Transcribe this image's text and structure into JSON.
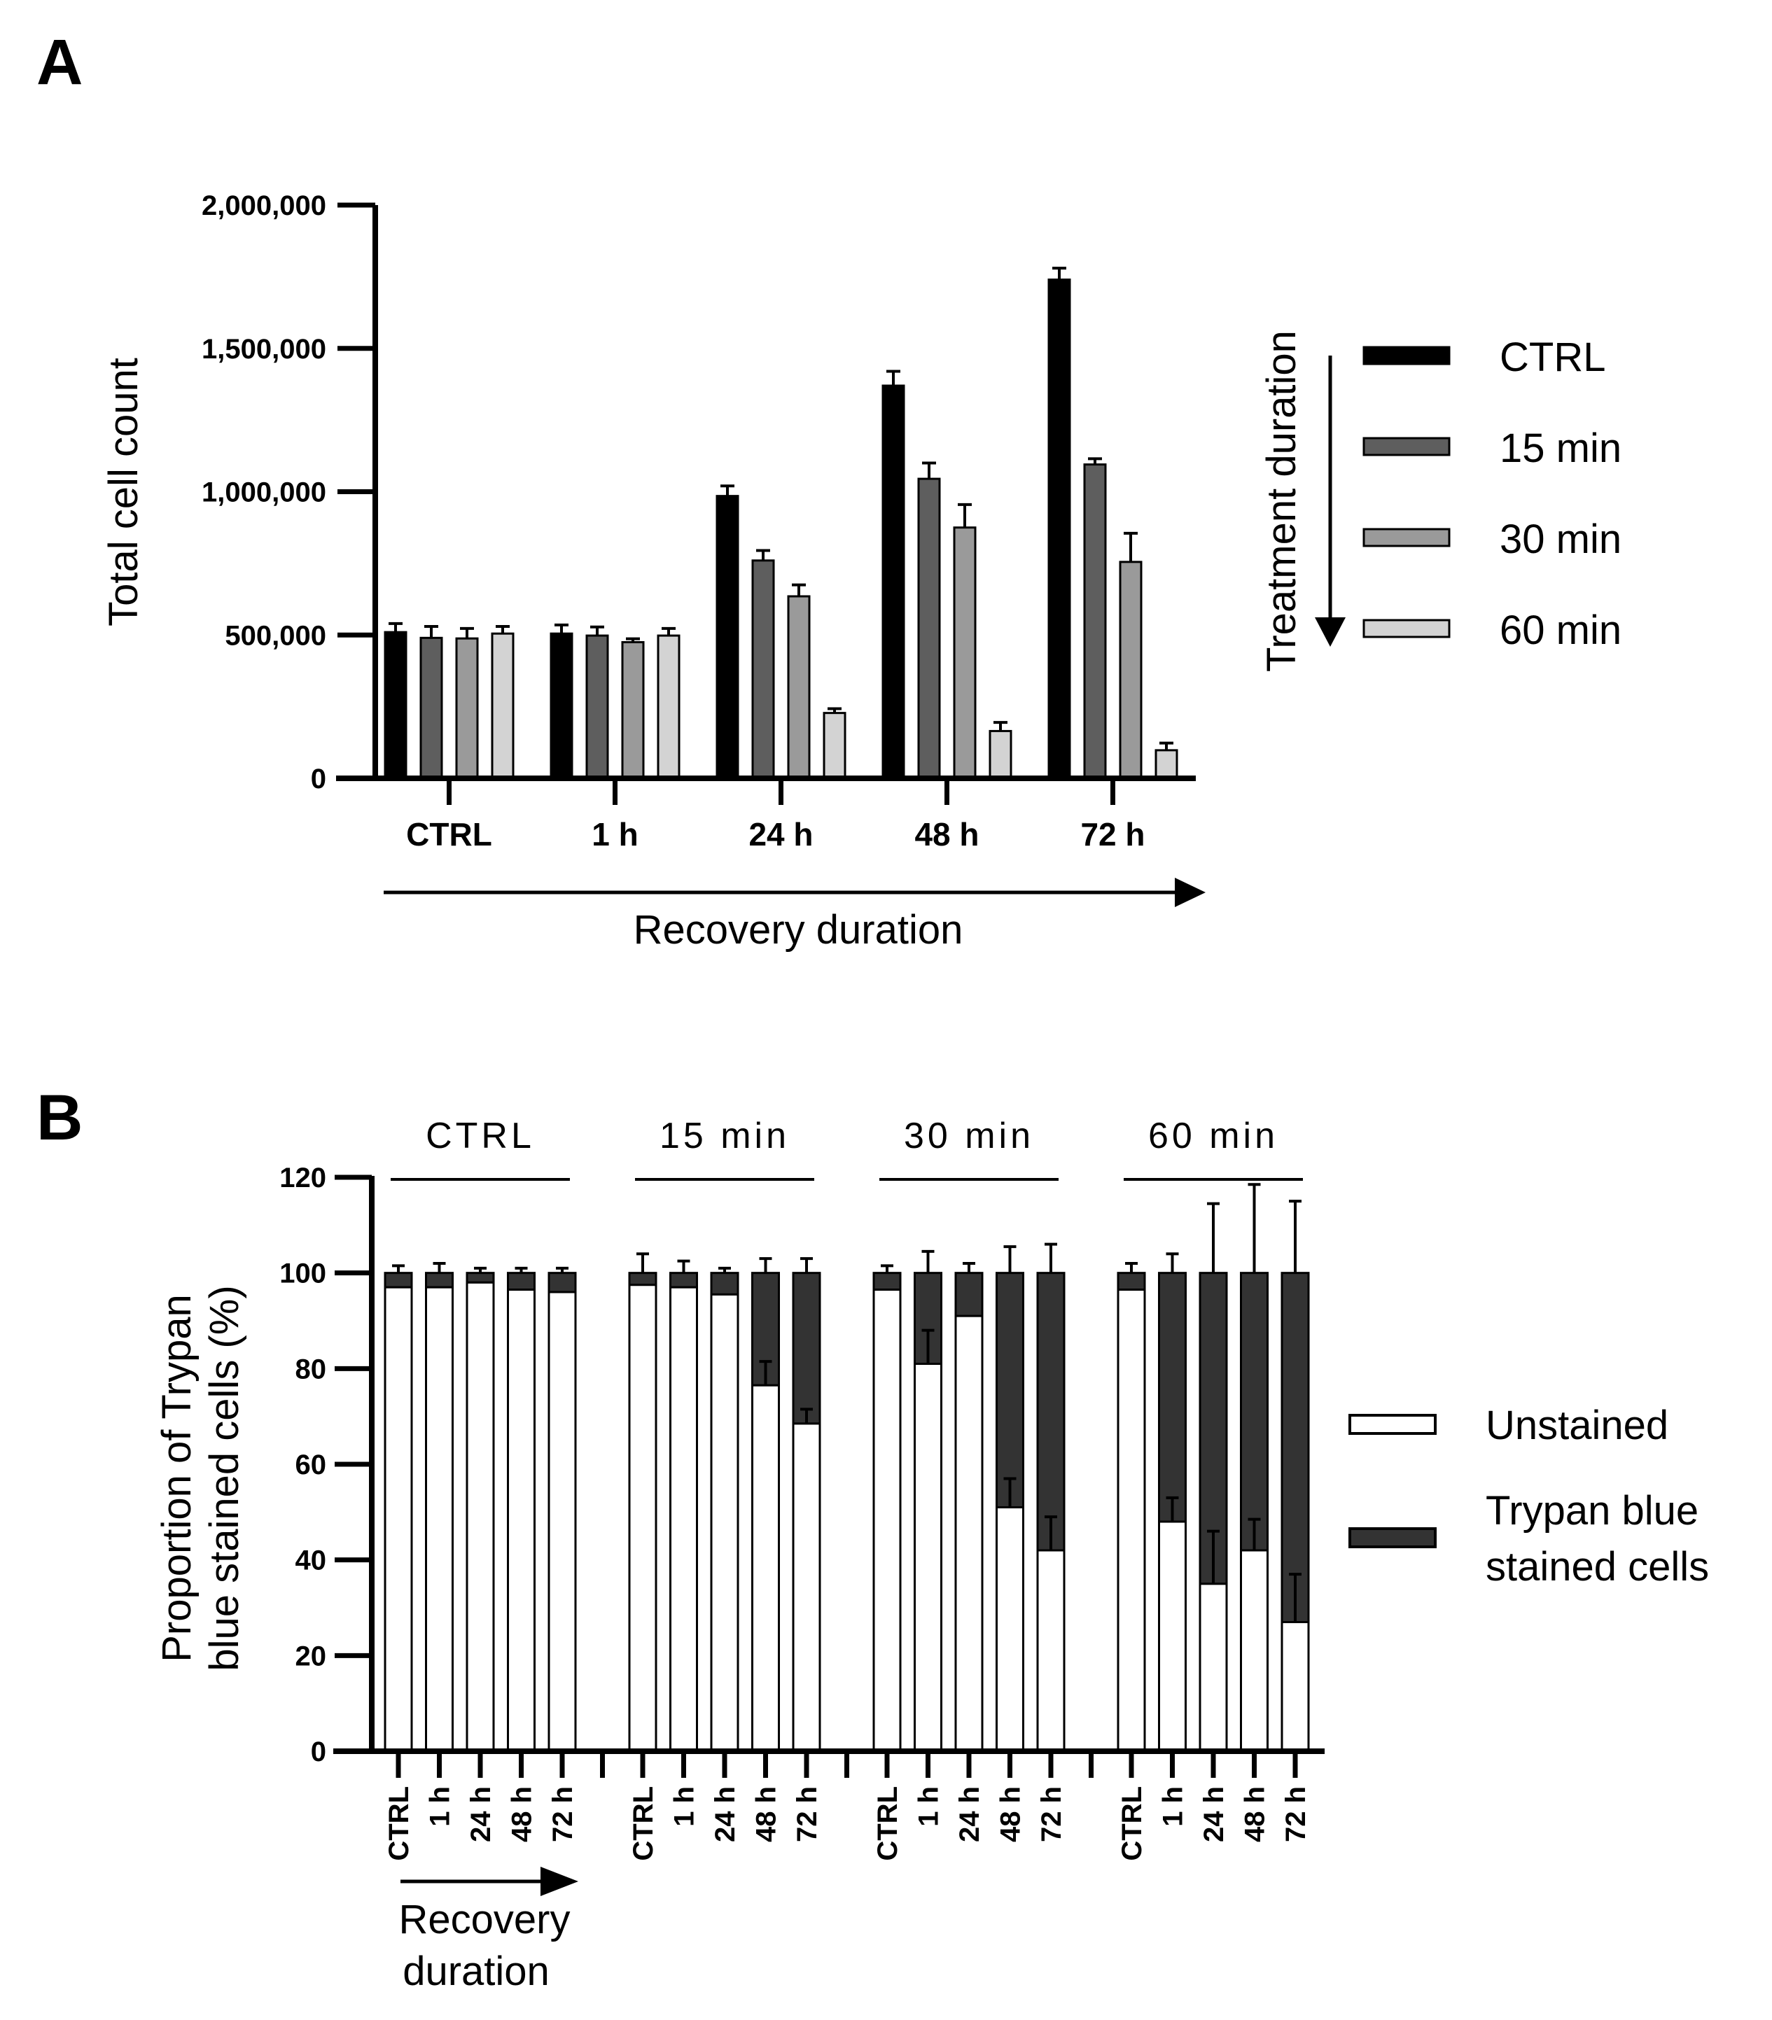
{
  "chart_data": [
    {
      "panel": "A",
      "type": "bar",
      "ylabel": "Total cell count",
      "xlabel": "Recovery duration",
      "legend_title": "Treatment duration",
      "ylim": [
        0,
        2000000
      ],
      "yticks": [
        0,
        500000,
        1000000,
        1500000,
        2000000
      ],
      "ytick_labels": [
        "0",
        "500,000",
        "1,000,000",
        "1,500,000",
        "2,000,000"
      ],
      "categories": [
        "CTRL",
        "1 h",
        "24 h",
        "48 h",
        "72 h"
      ],
      "series": [
        {
          "name": "CTRL",
          "color": "#000000",
          "values": [
            510000,
            505000,
            985000,
            1370000,
            1740000
          ],
          "errors": [
            30000,
            30000,
            35000,
            50000,
            40000
          ]
        },
        {
          "name": "15 min",
          "color": "#5e5e5e",
          "values": [
            490000,
            498000,
            760000,
            1045000,
            1095000
          ],
          "errors": [
            40000,
            30000,
            35000,
            55000,
            20000
          ]
        },
        {
          "name": "30 min",
          "color": "#9a9a9a",
          "values": [
            488000,
            475000,
            635000,
            875000,
            755000
          ],
          "errors": [
            35000,
            12000,
            40000,
            80000,
            100000
          ]
        },
        {
          "name": "60 min",
          "color": "#d3d3d3",
          "values": [
            505000,
            498000,
            228000,
            165000,
            98000
          ],
          "errors": [
            25000,
            25000,
            15000,
            30000,
            25000
          ]
        }
      ]
    },
    {
      "panel": "B",
      "type": "bar",
      "stacked": true,
      "ylabel": "Proportion of Trypan blue stained cells (%)",
      "ylabel_lines": [
        "Proportion of Trypan",
        "blue stained cells (%)"
      ],
      "xlabel_lines": [
        "Recovery",
        "duration"
      ],
      "ylim": [
        0,
        120
      ],
      "yticks": [
        0,
        20,
        40,
        60,
        80,
        100,
        120
      ],
      "groups": [
        "CTRL",
        "15 min",
        "30 min",
        "60 min"
      ],
      "categories": [
        "CTRL",
        "1 h",
        "24 h",
        "48 h",
        "72 h"
      ],
      "series": [
        {
          "name": "Unstained",
          "color": "#ffffff",
          "values": [
            [
              97,
              97,
              98,
              96.5,
              96
            ],
            [
              97.5,
              97,
              95.5,
              76.5,
              68.5
            ],
            [
              96.5,
              81,
              91,
              51,
              42
            ],
            [
              96.5,
              48,
              35,
              42,
              27
            ]
          ],
          "errors": [
            [
              0,
              0,
              0,
              0,
              0
            ],
            [
              0,
              0,
              0,
              5,
              3
            ],
            [
              0,
              7,
              0,
              6,
              7
            ],
            [
              0,
              5,
              11,
              6.5,
              10
            ]
          ]
        },
        {
          "name": "Trypan blue stained cells",
          "color": "#333333",
          "values": [
            [
              3,
              3,
              2,
              3.5,
              4
            ],
            [
              2.5,
              3,
              4.5,
              23.5,
              31.5
            ],
            [
              3.5,
              19,
              9,
              49,
              58
            ],
            [
              3.5,
              52,
              65,
              58,
              73
            ]
          ],
          "errors": [
            [
              1.5,
              2,
              1,
              1,
              1
            ],
            [
              4,
              2.5,
              1,
              3,
              3
            ],
            [
              1.5,
              4.5,
              2,
              5.5,
              6
            ],
            [
              2,
              4,
              14.5,
              18.5,
              15
            ]
          ]
        }
      ]
    }
  ]
}
